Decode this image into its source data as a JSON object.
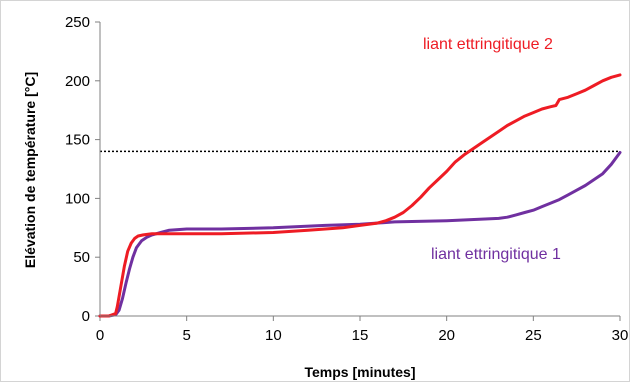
{
  "chart_data": {
    "type": "line",
    "xlabel": "Temps [minutes]",
    "ylabel": "Elévation de température [°C]",
    "xlim": [
      0,
      30
    ],
    "ylim": [
      0,
      250
    ],
    "x_ticks": [
      0,
      5,
      10,
      15,
      20,
      25,
      30
    ],
    "y_ticks": [
      0,
      50,
      100,
      150,
      200,
      250
    ],
    "grid": false,
    "reference_line": {
      "y": 140,
      "style": "dotted",
      "color": "#000000"
    },
    "series": [
      {
        "name": "liant ettringitique 2",
        "color": "#ee1c24",
        "x": [
          0,
          0.5,
          0.9,
          1.0,
          1.2,
          1.4,
          1.6,
          1.8,
          2.0,
          2.2,
          2.5,
          3.0,
          4.0,
          5.0,
          7.0,
          10.0,
          12.0,
          14.0,
          15.0,
          16.0,
          16.5,
          17.0,
          17.5,
          18.0,
          18.5,
          19.0,
          19.5,
          20.0,
          20.5,
          21.0,
          21.5,
          22.0,
          22.5,
          23.0,
          23.5,
          24.0,
          24.5,
          25.0,
          25.5,
          26.0,
          26.3,
          26.5,
          27.0,
          27.5,
          28.0,
          28.5,
          29.0,
          29.5,
          30.0
        ],
        "y": [
          0,
          0,
          2,
          8,
          25,
          42,
          55,
          62,
          66,
          68,
          69,
          70,
          70,
          70,
          70,
          71,
          73,
          75,
          77,
          79,
          81,
          84,
          88,
          94,
          101,
          109,
          116,
          123,
          131,
          137,
          142,
          147,
          152,
          157,
          162,
          166,
          170,
          173,
          176,
          178,
          179,
          184,
          186,
          189,
          192,
          196,
          200,
          203,
          205
        ]
      },
      {
        "name": "liant ettringitique 1",
        "color": "#7030a0",
        "x": [
          0,
          0.5,
          0.9,
          1.1,
          1.3,
          1.5,
          1.7,
          1.9,
          2.1,
          2.4,
          2.7,
          3.0,
          3.5,
          4.0,
          5.0,
          7.0,
          10.0,
          13.0,
          15.0,
          17.0,
          20.0,
          23.0,
          23.5,
          24.0,
          24.5,
          25.0,
          25.5,
          26.0,
          26.5,
          27.0,
          27.5,
          28.0,
          28.5,
          29.0,
          29.5,
          30.0
        ],
        "y": [
          0,
          0,
          1,
          5,
          15,
          28,
          40,
          50,
          58,
          64,
          67,
          69,
          71,
          73,
          74,
          74,
          75,
          77,
          78,
          80,
          81,
          83,
          84,
          86,
          88,
          90,
          93,
          96,
          99,
          103,
          107,
          111,
          116,
          121,
          129,
          139
        ]
      }
    ],
    "annotations": [
      {
        "text": "liant ettringitique 2",
        "series": 0
      },
      {
        "text": "liant ettringitique 1",
        "series": 1
      }
    ]
  }
}
